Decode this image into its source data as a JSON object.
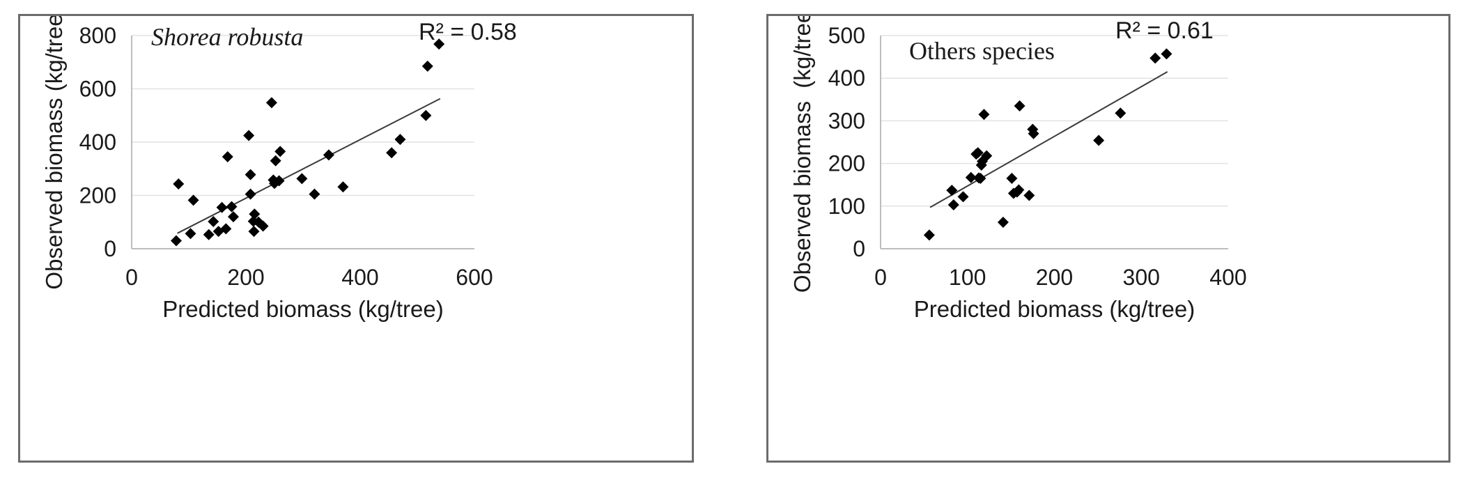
{
  "chart_data": [
    {
      "type": "scatter",
      "annotation": "Shorea robusta",
      "annotation_italic": true,
      "r_squared_label": "R² = 0.58",
      "xlabel": "Predicted biomass (kg/tree)",
      "ylabel": "Observed biomass (kg/tree)",
      "xlim": [
        0,
        600
      ],
      "ylim": [
        0,
        800
      ],
      "xticks": [
        0,
        200,
        400,
        600
      ],
      "yticks": [
        0,
        200,
        400,
        600,
        800
      ],
      "grid": "horizontal",
      "marker": "diamond",
      "marker_color": "#000000",
      "trendline": {
        "x": [
          80,
          540
        ],
        "y": [
          58,
          563
        ]
      },
      "points": [
        {
          "x": 78,
          "y": 30
        },
        {
          "x": 82,
          "y": 243
        },
        {
          "x": 103,
          "y": 57
        },
        {
          "x": 108,
          "y": 182
        },
        {
          "x": 135,
          "y": 53
        },
        {
          "x": 143,
          "y": 102
        },
        {
          "x": 152,
          "y": 65
        },
        {
          "x": 158,
          "y": 155
        },
        {
          "x": 165,
          "y": 75
        },
        {
          "x": 168,
          "y": 345
        },
        {
          "x": 175,
          "y": 158
        },
        {
          "x": 178,
          "y": 120
        },
        {
          "x": 205,
          "y": 425
        },
        {
          "x": 208,
          "y": 205
        },
        {
          "x": 208,
          "y": 278
        },
        {
          "x": 215,
          "y": 130
        },
        {
          "x": 213,
          "y": 103
        },
        {
          "x": 214,
          "y": 65
        },
        {
          "x": 222,
          "y": 100
        },
        {
          "x": 230,
          "y": 85
        },
        {
          "x": 245,
          "y": 548
        },
        {
          "x": 248,
          "y": 258
        },
        {
          "x": 250,
          "y": 245
        },
        {
          "x": 252,
          "y": 330
        },
        {
          "x": 258,
          "y": 255
        },
        {
          "x": 260,
          "y": 365
        },
        {
          "x": 298,
          "y": 263
        },
        {
          "x": 320,
          "y": 205
        },
        {
          "x": 345,
          "y": 352
        },
        {
          "x": 370,
          "y": 232
        },
        {
          "x": 455,
          "y": 360
        },
        {
          "x": 470,
          "y": 410
        },
        {
          "x": 515,
          "y": 500
        },
        {
          "x": 518,
          "y": 685
        },
        {
          "x": 538,
          "y": 768
        }
      ]
    },
    {
      "type": "scatter",
      "annotation": "Others species",
      "annotation_italic": false,
      "r_squared_label": "R² = 0.61",
      "xlabel": "Predicted biomass (kg/tree)",
      "ylabel": "Observed biomass  (kg/tree)",
      "xlim": [
        0,
        400
      ],
      "ylim": [
        0,
        500
      ],
      "xticks": [
        0,
        100,
        200,
        300,
        400
      ],
      "yticks": [
        0,
        100,
        200,
        300,
        400,
        500
      ],
      "grid": "horizontal",
      "marker": "diamond",
      "marker_color": "#000000",
      "trendline": {
        "x": [
          57,
          330
        ],
        "y": [
          97,
          415
        ]
      },
      "points": [
        {
          "x": 56,
          "y": 32
        },
        {
          "x": 82,
          "y": 137
        },
        {
          "x": 84,
          "y": 103
        },
        {
          "x": 95,
          "y": 122
        },
        {
          "x": 104,
          "y": 167
        },
        {
          "x": 110,
          "y": 222
        },
        {
          "x": 112,
          "y": 225
        },
        {
          "x": 113,
          "y": 166
        },
        {
          "x": 115,
          "y": 165
        },
        {
          "x": 116,
          "y": 196
        },
        {
          "x": 117,
          "y": 205
        },
        {
          "x": 119,
          "y": 315
        },
        {
          "x": 122,
          "y": 218
        },
        {
          "x": 141,
          "y": 62
        },
        {
          "x": 151,
          "y": 165
        },
        {
          "x": 153,
          "y": 130
        },
        {
          "x": 157,
          "y": 133
        },
        {
          "x": 159,
          "y": 138
        },
        {
          "x": 160,
          "y": 335
        },
        {
          "x": 171,
          "y": 125
        },
        {
          "x": 175,
          "y": 280
        },
        {
          "x": 176,
          "y": 270
        },
        {
          "x": 251,
          "y": 254
        },
        {
          "x": 276,
          "y": 318
        },
        {
          "x": 316,
          "y": 447
        },
        {
          "x": 329,
          "y": 457
        }
      ]
    }
  ]
}
